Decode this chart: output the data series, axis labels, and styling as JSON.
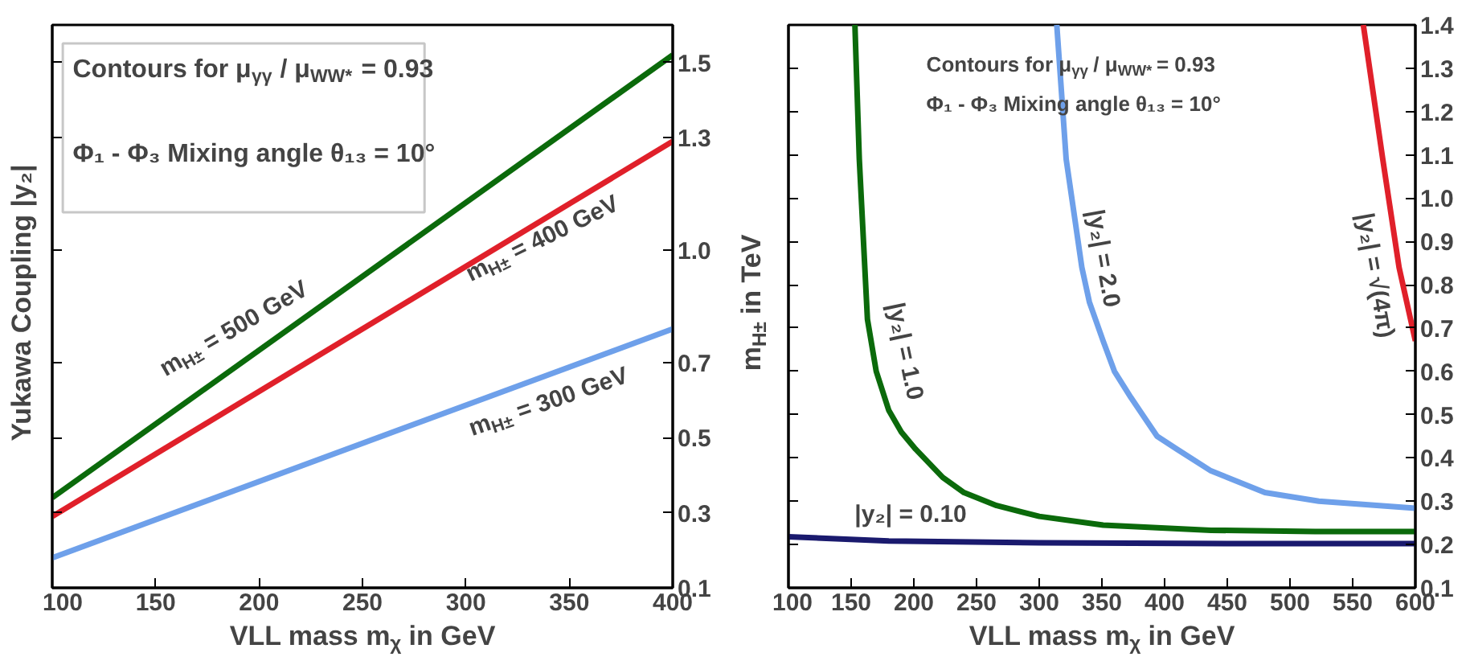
{
  "chart_data": [
    {
      "type": "line",
      "xlabel": "VLL mass m$_{χ}$ in GeV",
      "ylabel": "Yukawa Coupling |y₂|",
      "xlim": [
        100,
        400
      ],
      "xticks": [
        100,
        150,
        200,
        250,
        300,
        350,
        400
      ],
      "ylim": [
        0.1,
        1.6
      ],
      "yticks": [
        0.1,
        0.3,
        0.5,
        0.7,
        {
          "value": 1.0,
          "label": "1.0"
        },
        1.3,
        1.5
      ],
      "series": [
        {
          "color": "#0b6a0b",
          "x": [
            100,
            400
          ],
          "values": [
            0.34,
            1.52
          ]
        },
        {
          "color": "#e0202a",
          "x": [
            100,
            400
          ],
          "values": [
            0.29,
            1.29
          ]
        },
        {
          "color": "#6ea0ea",
          "x": [
            100,
            400
          ],
          "values": [
            0.18,
            0.79
          ]
        }
      ],
      "annotations": [
        "Contours for μ$_{γγ}$ / μ$_{WW*}$ = 0.93",
        "Φ₁ - Φ₃ Mixing angle θ₁₃ = 10°",
        "m$_{H±}$ = 500 GeV",
        "m$_{H±}$ = 400 GeV",
        "m$_{H±}$ = 300 GeV"
      ]
    },
    {
      "type": "line",
      "xlabel": "VLL mass m$_{χ}$ in GeV",
      "ylabel": "m$_{H±}$ in TeV",
      "xlim": [
        100,
        600
      ],
      "xticks": [
        100,
        150,
        200,
        250,
        300,
        350,
        400,
        450,
        500,
        550,
        600
      ],
      "ylim": [
        0.1,
        1.4
      ],
      "yticks": [
        0.1,
        0.2,
        0.3,
        0.4,
        0.5,
        0.6,
        0.7,
        0.8,
        0.9,
        {
          "value": 1.0,
          "label": "1.0"
        },
        1.1,
        1.2,
        1.3,
        1.4
      ],
      "series": [
        {
          "color": "#1a1a6e",
          "x": [
            100,
            180,
            300,
            450,
            600
          ],
          "values": [
            0.218,
            0.208,
            0.204,
            0.202,
            0.202
          ]
        },
        {
          "color": "#0b6a0b",
          "x": [
            153,
            156.5,
            163,
            170,
            180,
            190,
            201.5,
            223,
            240,
            266,
            300,
            351,
            437,
            520,
            600
          ],
          "values": [
            1.4,
            1.09,
            0.72,
            0.6,
            0.51,
            0.46,
            0.42,
            0.355,
            0.32,
            0.29,
            0.265,
            0.245,
            0.233,
            0.23,
            0.23
          ]
        },
        {
          "color": "#6ea0ea",
          "x": [
            314,
            321.5,
            334,
            340,
            351,
            360,
            373,
            394,
            410,
            437,
            480,
            523,
            600
          ],
          "values": [
            1.4,
            1.09,
            0.84,
            0.76,
            0.67,
            0.6,
            0.54,
            0.45,
            0.42,
            0.37,
            0.32,
            0.3,
            0.284
          ]
        },
        {
          "color": "#e0202a",
          "x": [
            558.5,
            574,
            587,
            600
          ],
          "values": [
            1.4,
            1.09,
            0.84,
            0.67
          ]
        }
      ],
      "annotations": [
        "Contours for μ$_{γγ}$ / μ$_{WW*}$ = 0.93",
        "Φ₁ - Φ₃ Mixing angle θ₁₃ = 10°",
        "|y₂| = 1.0",
        "|y₂| = 2.0",
        "|y₂| = √(4π)",
        "|y₂| = 0.10"
      ]
    }
  ]
}
